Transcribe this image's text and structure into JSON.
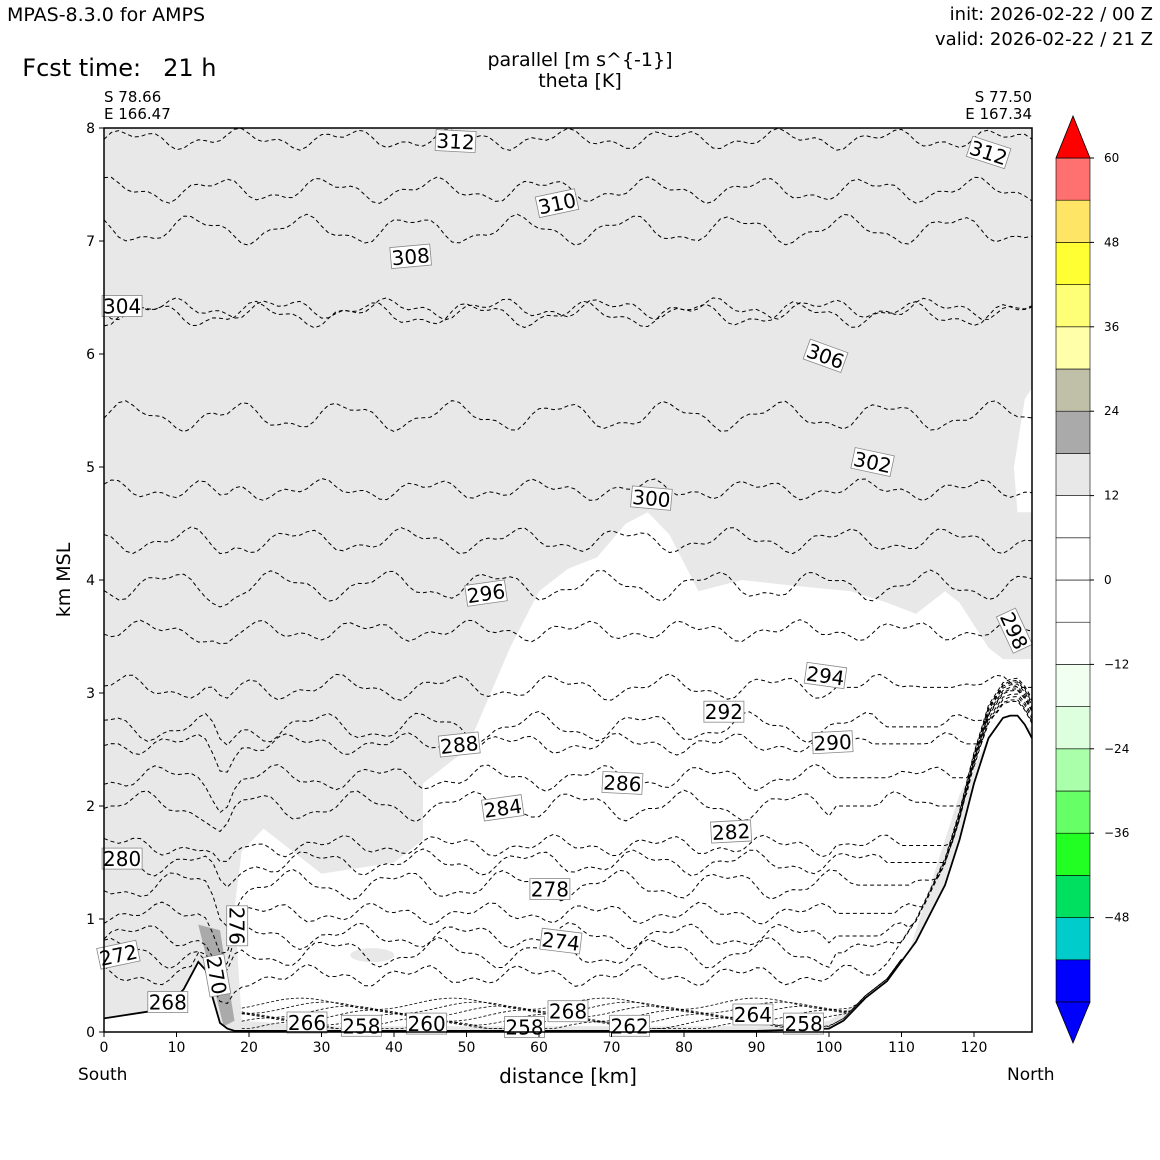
{
  "header": {
    "model": "MPAS-8.3.0 for AMPS",
    "fcst_label": "Fcst time:",
    "fcst_value": "21 h",
    "init": "init: 2026-02-22 / 00 Z",
    "valid": "valid: 2026-02-22 / 21 Z"
  },
  "endpoints": {
    "left_lat": "S 78.66",
    "left_lon": "E 166.47",
    "right_lat": "S 77.50",
    "right_lon": "E 167.34",
    "left_dir": "South",
    "right_dir": "North"
  },
  "chart_data": {
    "type": "cross-section",
    "title": "parallel [m s^{-1}]",
    "subtitle": "theta [K]",
    "xlabel": "distance [km]",
    "ylabel": "km MSL",
    "xlim": [
      0,
      128
    ],
    "ylim": [
      0,
      8
    ],
    "xticks": [
      0,
      10,
      20,
      30,
      40,
      50,
      60,
      70,
      80,
      90,
      100,
      110,
      120
    ],
    "yticks": [
      0,
      1,
      2,
      3,
      4,
      5,
      6,
      7,
      8
    ],
    "terrain": {
      "x": [
        0,
        3,
        6,
        9,
        11,
        13,
        14,
        15,
        16,
        17,
        18,
        20,
        30,
        50,
        70,
        90,
        100,
        102,
        105,
        108,
        112,
        116,
        118,
        120,
        122,
        124,
        125,
        126,
        127,
        128
      ],
      "y": [
        0.12,
        0.15,
        0.18,
        0.24,
        0.38,
        0.62,
        0.55,
        0.3,
        0.08,
        0.03,
        0.01,
        0.01,
        0.01,
        0.01,
        0.01,
        0.01,
        0.03,
        0.1,
        0.3,
        0.45,
        0.8,
        1.3,
        1.7,
        2.2,
        2.6,
        2.78,
        2.8,
        2.8,
        2.72,
        2.6
      ]
    },
    "theta_contours": [
      {
        "value": 312,
        "y": 7.9
      },
      {
        "value": 310,
        "y": 7.45
      },
      {
        "value": 308,
        "y": 7.1
      },
      {
        "value": 306,
        "y": 6.4
      },
      {
        "value": 304,
        "y": 6.35
      },
      {
        "value": 302,
        "y": 5.45
      },
      {
        "value": 300,
        "y": 4.8
      },
      {
        "value": 298,
        "y": 4.35
      },
      {
        "value": 296,
        "y": 3.95
      },
      {
        "value": 294,
        "y": 3.55
      },
      {
        "value": 292,
        "y": 3.05
      },
      {
        "value": 290,
        "y": 2.7
      },
      {
        "value": 288,
        "y": 2.55
      },
      {
        "value": 286,
        "y": 2.25
      },
      {
        "value": 284,
        "y": 2.0
      },
      {
        "value": 282,
        "y": 1.65
      },
      {
        "value": 280,
        "y": 1.5
      },
      {
        "value": 278,
        "y": 1.3
      },
      {
        "value": 276,
        "y": 1.05
      },
      {
        "value": 274,
        "y": 0.85
      },
      {
        "value": 272,
        "y": 0.7
      },
      {
        "value": 270,
        "y": 0.5
      }
    ],
    "contour_labels": [
      {
        "text": "312",
        "x": 48.5,
        "y": 7.88,
        "rot": 3
      },
      {
        "text": "312",
        "x": 122,
        "y": 7.78,
        "rot": 18
      },
      {
        "text": "310",
        "x": 62.5,
        "y": 7.33,
        "rot": -12
      },
      {
        "text": "308",
        "x": 42.3,
        "y": 6.86,
        "rot": -5
      },
      {
        "text": "306",
        "x": 99.5,
        "y": 5.98,
        "rot": 20
      },
      {
        "text": "304",
        "x": 2.5,
        "y": 6.42,
        "rot": 0
      },
      {
        "text": "302",
        "x": 106,
        "y": 5.04,
        "rot": 12
      },
      {
        "text": "300",
        "x": 75.5,
        "y": 4.72,
        "rot": 5
      },
      {
        "text": "298",
        "x": 125.5,
        "y": 3.55,
        "rot": 65
      },
      {
        "text": "296",
        "x": 52.7,
        "y": 3.88,
        "rot": -8
      },
      {
        "text": "294",
        "x": 99.5,
        "y": 3.15,
        "rot": 8
      },
      {
        "text": "292",
        "x": 85.5,
        "y": 2.83,
        "rot": 0
      },
      {
        "text": "290",
        "x": 100.5,
        "y": 2.56,
        "rot": -3
      },
      {
        "text": "288",
        "x": 49,
        "y": 2.54,
        "rot": -6
      },
      {
        "text": "286",
        "x": 71.5,
        "y": 2.2,
        "rot": 3
      },
      {
        "text": "284",
        "x": 55,
        "y": 1.98,
        "rot": -8
      },
      {
        "text": "282",
        "x": 86.5,
        "y": 1.77,
        "rot": -3
      },
      {
        "text": "280",
        "x": 2.5,
        "y": 1.53,
        "rot": 0
      },
      {
        "text": "278",
        "x": 61.5,
        "y": 1.26,
        "rot": 0
      },
      {
        "text": "276",
        "x": 18.3,
        "y": 0.94,
        "rot": 90
      },
      {
        "text": "274",
        "x": 63,
        "y": 0.8,
        "rot": 7
      },
      {
        "text": "272",
        "x": 2,
        "y": 0.68,
        "rot": -12
      },
      {
        "text": "270",
        "x": 15.5,
        "y": 0.5,
        "rot": 80
      },
      {
        "text": "268",
        "x": 8.8,
        "y": 0.26,
        "rot": 0
      },
      {
        "text": "266",
        "x": 28,
        "y": 0.08,
        "rot": 0
      },
      {
        "text": "268",
        "x": 64,
        "y": 0.18,
        "rot": 0
      },
      {
        "text": "264",
        "x": 89.5,
        "y": 0.15,
        "rot": 0
      },
      {
        "text": "262",
        "x": 72.5,
        "y": 0.05,
        "rot": 0
      },
      {
        "text": "260",
        "x": 44.5,
        "y": 0.07,
        "rot": 0
      },
      {
        "text": "258",
        "x": 35.5,
        "y": 0.05,
        "rot": 0
      },
      {
        "text": "258",
        "x": 58,
        "y": 0.04,
        "rot": 0
      },
      {
        "text": "258",
        "x": 96.5,
        "y": 0.07,
        "rot": 0
      }
    ],
    "colorbar": {
      "levels": [
        -60,
        -54,
        -48,
        -42,
        -36,
        -30,
        -24,
        -18,
        -12,
        -6,
        0,
        6,
        12,
        18,
        24,
        30,
        36,
        42,
        48,
        54,
        60
      ],
      "colors": [
        "#0000ff",
        "#00cccc",
        "#00e060",
        "#22ff22",
        "#66ff66",
        "#aaffaa",
        "#ddffdd",
        "#f0fff0",
        "#ffffff",
        "#ffffff",
        "#ffffff",
        "#ffffff",
        "#e8e8e8",
        "#aaaaaa",
        "#c0c0a8",
        "#ffffaa",
        "#ffff77",
        "#ffff33",
        "#ffe566",
        "#ff7070",
        "#ff0000"
      ],
      "tick_labels": [
        "60",
        "48",
        "36",
        "24",
        "12",
        "0",
        "−12",
        "−24",
        "−36",
        "−48"
      ],
      "tick_values": [
        60,
        48,
        36,
        24,
        12,
        0,
        -12,
        -24,
        -36,
        -48
      ]
    }
  }
}
